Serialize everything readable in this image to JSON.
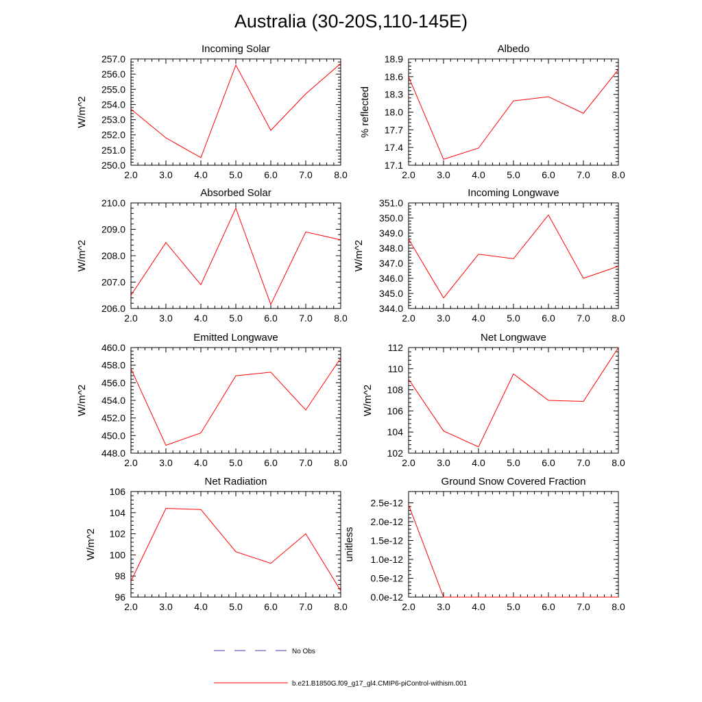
{
  "figure": {
    "title": "Australia (30-20S,110-145E)",
    "legend": [
      {
        "label": "No Obs",
        "color": "#3a3ab0",
        "style": "dashed"
      },
      {
        "label": "b.e21.B1850G.f09_g17_gl4.CMIP6-piControl-withism.001",
        "color": "#ff0000",
        "style": "solid"
      }
    ]
  },
  "chart_data": [
    {
      "type": "line",
      "title": "Incoming Solar",
      "ylabel": "W/m^2",
      "xlim": [
        2.0,
        8.0
      ],
      "ylim": [
        250.0,
        257.0
      ],
      "x_ticks": [
        "2.0",
        "3.0",
        "4.0",
        "5.0",
        "6.0",
        "7.0",
        "8.0"
      ],
      "y_ticks": [
        "250.0",
        "251.0",
        "252.0",
        "253.0",
        "254.0",
        "255.0",
        "256.0",
        "257.0"
      ],
      "x": [
        2,
        3,
        4,
        5,
        6,
        7,
        8
      ],
      "series": [
        {
          "name": "b.e21.B1850G.f09_g17_gl4.CMIP6-piControl-withism.001",
          "color": "#ff0000",
          "values": [
            253.7,
            251.8,
            250.5,
            256.6,
            252.3,
            254.7,
            256.7
          ]
        }
      ]
    },
    {
      "type": "line",
      "title": "Albedo",
      "ylabel": "% reflected",
      "xlim": [
        2.0,
        8.0
      ],
      "ylim": [
        17.1,
        18.9
      ],
      "x_ticks": [
        "2.0",
        "3.0",
        "4.0",
        "5.0",
        "6.0",
        "7.0",
        "8.0"
      ],
      "y_ticks": [
        "17.1",
        "17.4",
        "17.7",
        "18.0",
        "18.3",
        "18.6",
        "18.9"
      ],
      "x": [
        2,
        3,
        4,
        5,
        6,
        7,
        8
      ],
      "series": [
        {
          "name": "b.e21.B1850G.f09_g17_gl4.CMIP6-piControl-withism.001",
          "color": "#ff0000",
          "values": [
            18.6,
            17.2,
            17.39,
            18.19,
            18.26,
            17.98,
            18.72
          ]
        }
      ]
    },
    {
      "type": "line",
      "title": "Absorbed Solar",
      "ylabel": "W/m^2",
      "xlim": [
        2.0,
        8.0
      ],
      "ylim": [
        206.0,
        210.0
      ],
      "x_ticks": [
        "2.0",
        "3.0",
        "4.0",
        "5.0",
        "6.0",
        "7.0",
        "8.0"
      ],
      "y_ticks": [
        "206.0",
        "207.0",
        "208.0",
        "209.0",
        "210.0"
      ],
      "x": [
        2,
        3,
        4,
        5,
        6,
        7,
        8
      ],
      "series": [
        {
          "name": "b.e21.B1850G.f09_g17_gl4.CMIP6-piControl-withism.001",
          "color": "#ff0000",
          "values": [
            206.5,
            208.5,
            206.9,
            209.8,
            206.15,
            208.9,
            208.6
          ]
        }
      ]
    },
    {
      "type": "line",
      "title": "Incoming Longwave",
      "ylabel": "W/m^2",
      "xlim": [
        2.0,
        8.0
      ],
      "ylim": [
        344.0,
        351.0
      ],
      "x_ticks": [
        "2.0",
        "3.0",
        "4.0",
        "5.0",
        "6.0",
        "7.0",
        "8.0"
      ],
      "y_ticks": [
        "344.0",
        "345.0",
        "346.0",
        "347.0",
        "348.0",
        "349.0",
        "350.0",
        "351.0"
      ],
      "x": [
        2,
        3,
        4,
        5,
        6,
        7,
        8
      ],
      "series": [
        {
          "name": "b.e21.B1850G.f09_g17_gl4.CMIP6-piControl-withism.001",
          "color": "#ff0000",
          "values": [
            348.6,
            344.7,
            347.6,
            347.3,
            350.2,
            346.0,
            346.8
          ]
        }
      ]
    },
    {
      "type": "line",
      "title": "Emitted Longwave",
      "ylabel": "W/m^2",
      "xlim": [
        2.0,
        8.0
      ],
      "ylim": [
        448.0,
        460.0
      ],
      "x_ticks": [
        "2.0",
        "3.0",
        "4.0",
        "5.0",
        "6.0",
        "7.0",
        "8.0"
      ],
      "y_ticks": [
        "448.0",
        "450.0",
        "452.0",
        "454.0",
        "456.0",
        "458.0",
        "460.0"
      ],
      "x": [
        2,
        3,
        4,
        5,
        6,
        7,
        8
      ],
      "series": [
        {
          "name": "b.e21.B1850G.f09_g17_gl4.CMIP6-piControl-withism.001",
          "color": "#ff0000",
          "values": [
            457.6,
            448.9,
            450.3,
            456.8,
            457.2,
            452.9,
            458.8
          ]
        }
      ]
    },
    {
      "type": "line",
      "title": "Net Longwave",
      "ylabel": "W/m^2",
      "xlim": [
        2.0,
        8.0
      ],
      "ylim": [
        102,
        112
      ],
      "x_ticks": [
        "2.0",
        "3.0",
        "4.0",
        "5.0",
        "6.0",
        "7.0",
        "8.0"
      ],
      "y_ticks": [
        "102",
        "104",
        "106",
        "108",
        "110",
        "112"
      ],
      "x": [
        2,
        3,
        4,
        5,
        6,
        7,
        8
      ],
      "series": [
        {
          "name": "b.e21.B1850G.f09_g17_gl4.CMIP6-piControl-withism.001",
          "color": "#ff0000",
          "values": [
            109.0,
            104.1,
            102.6,
            109.5,
            107.0,
            106.9,
            112.0
          ]
        }
      ]
    },
    {
      "type": "line",
      "title": "Net Radiation",
      "ylabel": "W/m^2",
      "xlim": [
        2.0,
        8.0
      ],
      "ylim": [
        96,
        106
      ],
      "x_ticks": [
        "2.0",
        "3.0",
        "4.0",
        "5.0",
        "6.0",
        "7.0",
        "8.0"
      ],
      "y_ticks": [
        "96",
        "98",
        "100",
        "102",
        "104",
        "106"
      ],
      "x": [
        2,
        3,
        4,
        5,
        6,
        7,
        8
      ],
      "series": [
        {
          "name": "b.e21.B1850G.f09_g17_gl4.CMIP6-piControl-withism.001",
          "color": "#ff0000",
          "values": [
            97.5,
            104.4,
            104.3,
            100.3,
            99.2,
            102.0,
            96.6
          ]
        }
      ]
    },
    {
      "type": "line",
      "title": "Ground Snow Covered Fraction",
      "ylabel": "unitless",
      "xlim": [
        2.0,
        8.0
      ],
      "ylim": [
        0.0,
        2.8e-12
      ],
      "x_ticks": [
        "2.0",
        "3.0",
        "4.0",
        "5.0",
        "6.0",
        "7.0",
        "8.0"
      ],
      "y_ticks": [
        "0.0e-12",
        "0.5e-12",
        "1.0e-12",
        "1.5e-12",
        "2.0e-12",
        "2.5e-12"
      ],
      "y_tick_values": [
        0.0,
        5e-13,
        1e-12,
        1.5e-12,
        2e-12,
        2.5e-12
      ],
      "x": [
        2,
        3,
        4,
        5,
        6,
        7,
        8
      ],
      "series": [
        {
          "name": "b.e21.B1850G.f09_g17_gl4.CMIP6-piControl-withism.001",
          "color": "#ff0000",
          "values": [
            2.45e-12,
            0.0,
            0.0,
            0.0,
            0.0,
            0.0,
            0.0
          ]
        }
      ]
    }
  ]
}
